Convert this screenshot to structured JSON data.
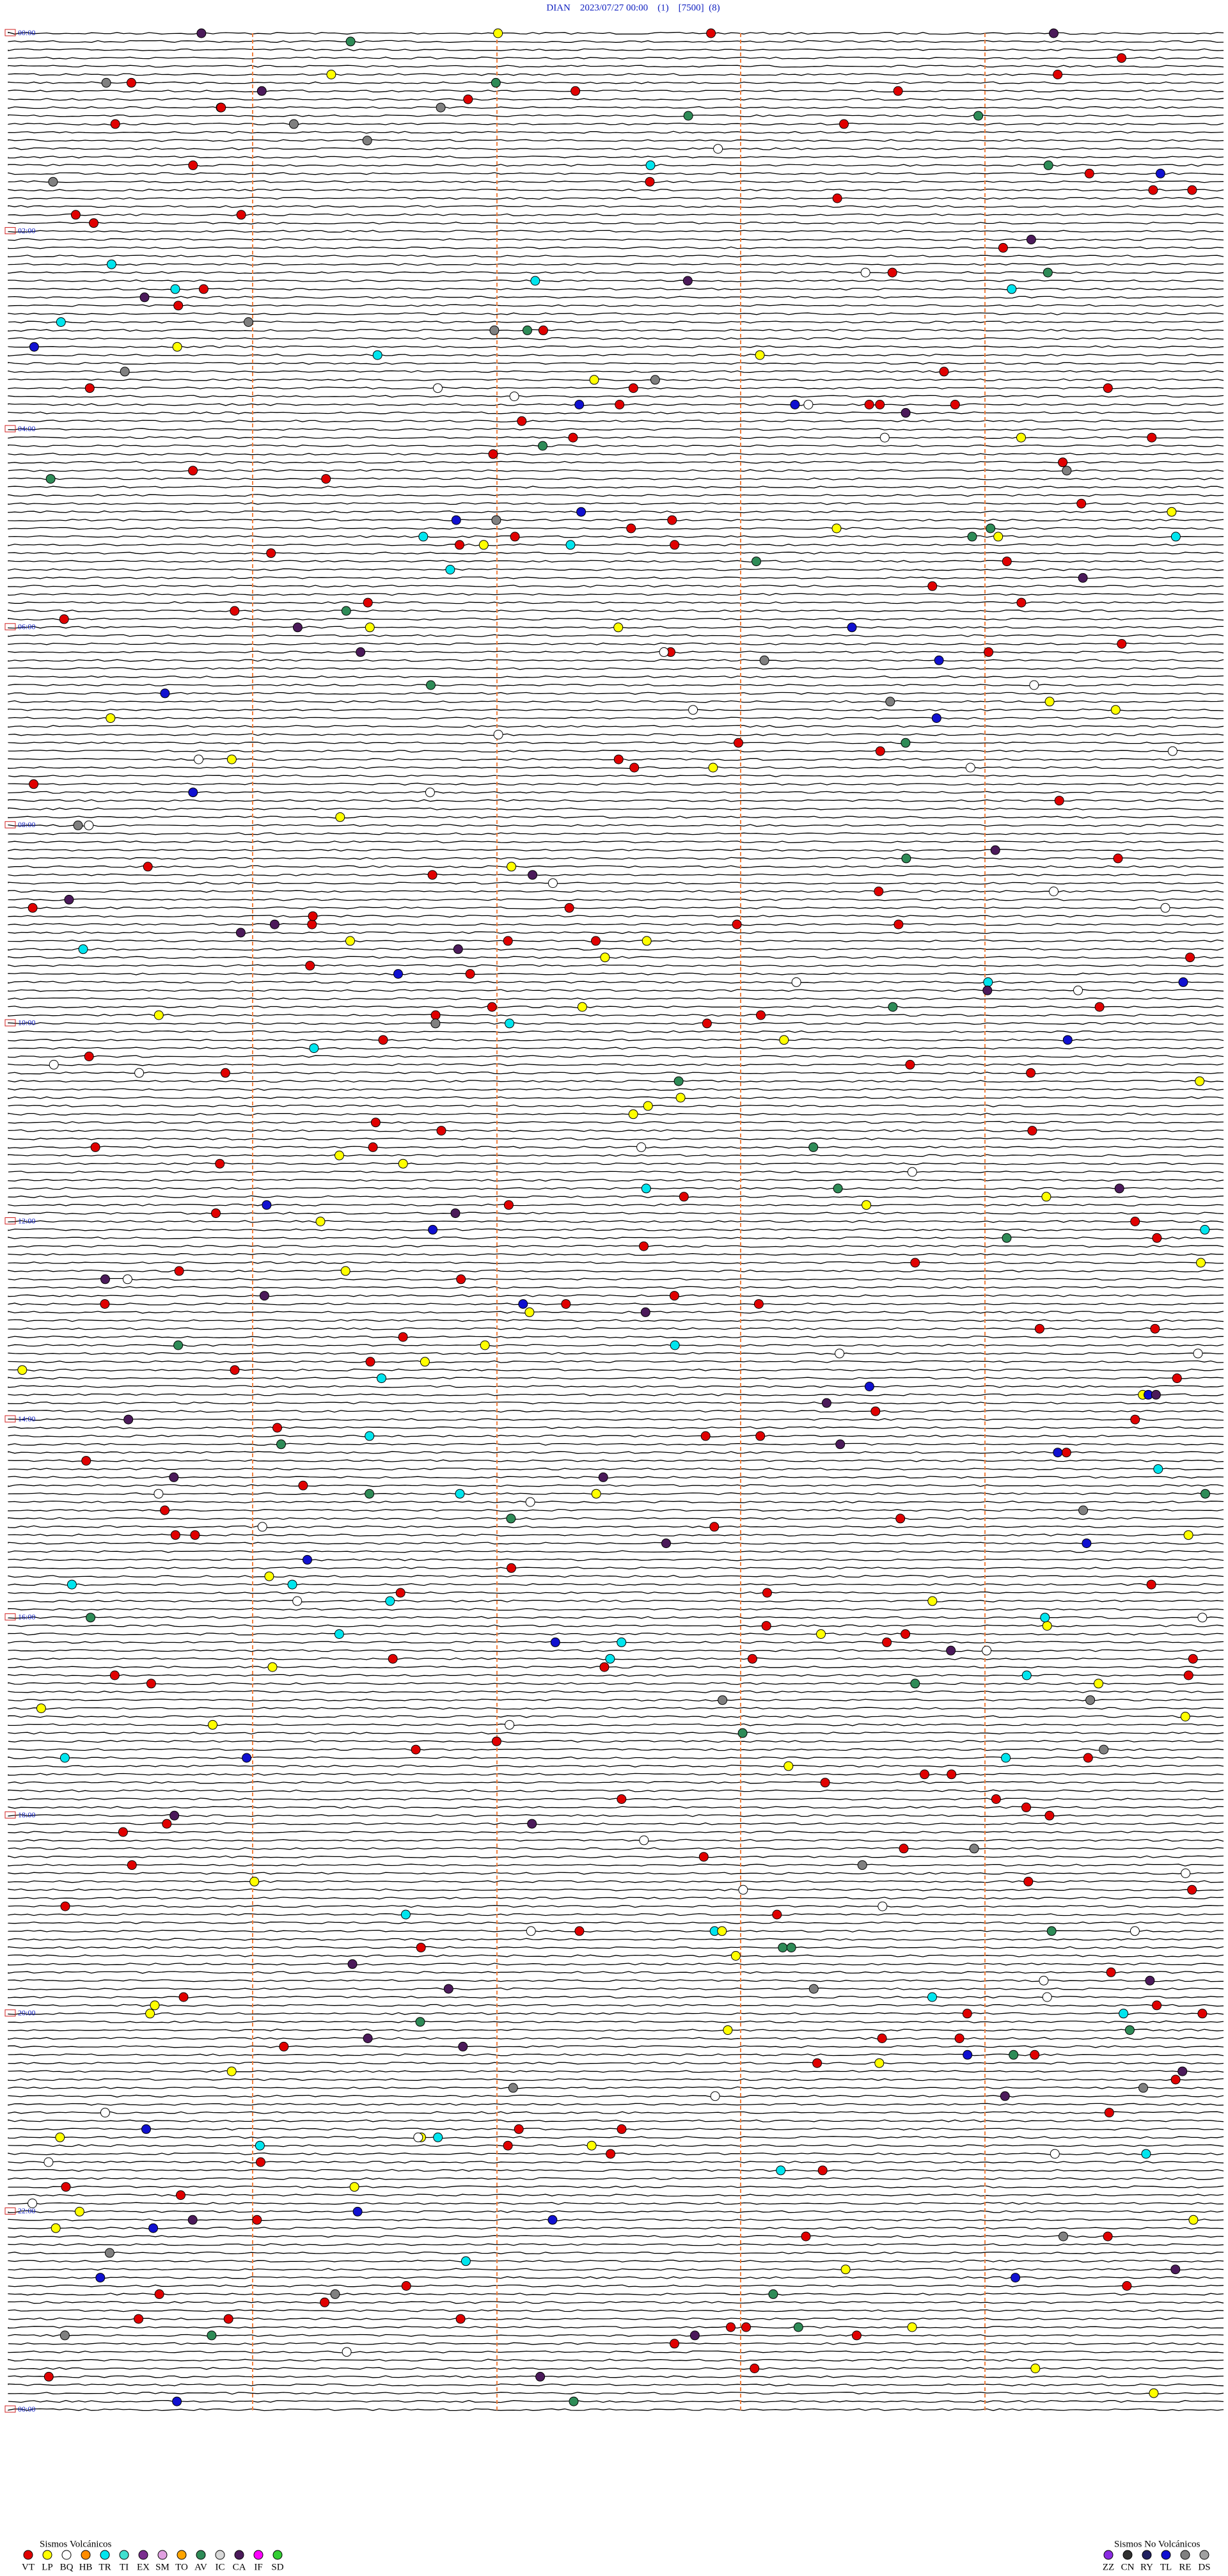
{
  "header": {
    "title": "DIAN    2023/07/27 00:00    (1)    [7500]  (8)"
  },
  "hour_labels": [
    "00:00",
    "02:00",
    "04:00",
    "06:00",
    "08:00",
    "10:00",
    "12:00",
    "14:00",
    "16:00",
    "18:00",
    "20:00",
    "22:00",
    "00:00"
  ],
  "legend": {
    "volcanic": {
      "title": "Sismos Volcánicos",
      "items": [
        {
          "code": "VT",
          "color": "#e00000"
        },
        {
          "code": "LP",
          "color": "#ffff00"
        },
        {
          "code": "BQ",
          "color": "#ffffff"
        },
        {
          "code": "HB",
          "color": "#ff8c00"
        },
        {
          "code": "TR",
          "color": "#00e5ee"
        },
        {
          "code": "TI",
          "color": "#40e0d0"
        },
        {
          "code": "EX",
          "color": "#7b2f8f"
        },
        {
          "code": "SM",
          "color": "#e0a0e0"
        },
        {
          "code": "TO",
          "color": "#ffa500"
        },
        {
          "code": "AV",
          "color": "#2e8b57"
        },
        {
          "code": "IC",
          "color": "#d8d8d8"
        },
        {
          "code": "CA",
          "color": "#4b1a5a"
        },
        {
          "code": "IF",
          "color": "#ff00ff"
        },
        {
          "code": "SD",
          "color": "#32cd32"
        }
      ]
    },
    "non_volcanic": {
      "title": "Sismos No Volcánicos",
      "items": [
        {
          "code": "ZZ",
          "color": "#8a2be2"
        },
        {
          "code": "CN",
          "color": "#303030"
        },
        {
          "code": "RY",
          "color": "#202060"
        },
        {
          "code": "TL",
          "color": "#1010d0"
        },
        {
          "code": "RE",
          "color": "#808080"
        },
        {
          "code": "DS",
          "color": "#a0a0a0"
        }
      ]
    }
  }
}
